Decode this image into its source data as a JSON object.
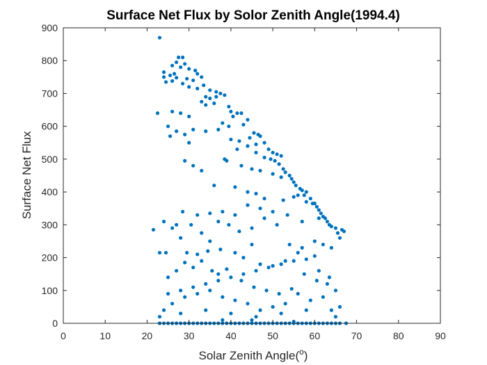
{
  "chart_data": {
    "type": "scatter",
    "title": "Surface Net Flux by Solor Zenith Angle(1994.4)",
    "xlabel": "Solar Zenith Angle(",
    "xlabel_superscript": "o",
    "xlabel_suffix": ")",
    "ylabel": "Surface Net Flux",
    "xlim": [
      0,
      90
    ],
    "ylim": [
      0,
      900
    ],
    "xticks": [
      0,
      10,
      20,
      30,
      40,
      50,
      60,
      70,
      80,
      90
    ],
    "yticks": [
      0,
      100,
      200,
      300,
      400,
      500,
      600,
      700,
      800,
      900
    ],
    "grid": false,
    "marker_color": "#0072BD",
    "series": [
      {
        "points": [
          [
            23,
            870
          ],
          [
            27.5,
            810
          ],
          [
            28.5,
            810
          ],
          [
            27,
            795
          ],
          [
            29,
            790
          ],
          [
            26,
            785
          ],
          [
            28,
            780
          ],
          [
            30,
            775
          ],
          [
            31.5,
            770
          ],
          [
            24,
            765
          ],
          [
            26.5,
            760
          ],
          [
            32,
            760
          ],
          [
            33,
            750
          ],
          [
            24,
            750
          ],
          [
            25.5,
            755
          ],
          [
            27,
            748
          ],
          [
            29.5,
            745
          ],
          [
            31,
            740
          ],
          [
            24.5,
            735
          ],
          [
            26,
            738
          ],
          [
            28.5,
            730
          ],
          [
            33.5,
            725
          ],
          [
            30,
            720
          ],
          [
            32,
            715
          ],
          [
            35,
            710
          ],
          [
            36.5,
            705
          ],
          [
            37.5,
            700
          ],
          [
            34,
            690
          ],
          [
            35,
            685
          ],
          [
            36.5,
            690
          ],
          [
            38.5,
            695
          ],
          [
            33,
            675
          ],
          [
            34,
            665
          ],
          [
            36,
            670
          ],
          [
            39.5,
            660
          ],
          [
            40,
            645
          ],
          [
            41.5,
            640
          ],
          [
            42.5,
            640
          ],
          [
            40.5,
            630
          ],
          [
            44,
            620
          ],
          [
            38,
            610
          ],
          [
            39.5,
            600
          ],
          [
            43,
            605
          ],
          [
            45.5,
            580
          ],
          [
            46.5,
            575
          ],
          [
            47,
            570
          ],
          [
            44.5,
            565
          ],
          [
            48,
            550
          ],
          [
            46,
            545
          ],
          [
            49,
            530
          ],
          [
            50,
            520
          ],
          [
            51,
            515
          ],
          [
            52,
            510
          ],
          [
            49.5,
            500
          ],
          [
            50.5,
            495
          ],
          [
            51.5,
            485
          ],
          [
            52.5,
            470
          ],
          [
            53,
            460
          ],
          [
            54,
            450
          ],
          [
            54.5,
            440
          ],
          [
            55,
            430
          ],
          [
            55.5,
            420
          ],
          [
            56.5,
            410
          ],
          [
            57,
            405
          ],
          [
            58,
            400
          ],
          [
            57.5,
            390
          ],
          [
            59,
            380
          ],
          [
            60,
            365
          ],
          [
            60.5,
            355
          ],
          [
            61,
            345
          ],
          [
            61.5,
            335
          ],
          [
            62,
            325
          ],
          [
            62.5,
            320
          ],
          [
            63,
            310
          ],
          [
            63.5,
            300
          ],
          [
            64,
            295
          ],
          [
            65,
            290
          ],
          [
            66.5,
            285
          ],
          [
            67,
            280
          ],
          [
            65.5,
            275
          ],
          [
            22.5,
            640
          ],
          [
            26,
            645
          ],
          [
            28,
            640
          ],
          [
            30,
            630
          ],
          [
            25,
            600
          ],
          [
            27,
            585
          ],
          [
            25.5,
            570
          ],
          [
            29,
            575
          ],
          [
            31,
            590
          ],
          [
            34,
            585
          ],
          [
            37,
            590
          ],
          [
            40,
            560
          ],
          [
            42,
            555
          ],
          [
            44,
            540
          ],
          [
            41.5,
            530
          ],
          [
            46,
            520
          ],
          [
            48,
            505
          ],
          [
            30,
            550
          ],
          [
            29,
            495
          ],
          [
            31,
            480
          ],
          [
            33,
            465
          ],
          [
            38.5,
            500
          ],
          [
            39,
            495
          ],
          [
            42.5,
            480
          ],
          [
            45,
            470
          ],
          [
            47,
            465
          ],
          [
            50,
            455
          ],
          [
            52,
            445
          ],
          [
            36,
            420
          ],
          [
            41,
            415
          ],
          [
            44,
            400
          ],
          [
            46,
            395
          ],
          [
            48,
            380
          ],
          [
            52.5,
            375
          ],
          [
            55,
            385
          ],
          [
            56,
            390
          ],
          [
            58,
            370
          ],
          [
            59.5,
            365
          ],
          [
            61,
            320
          ],
          [
            57,
            310
          ],
          [
            53.5,
            330
          ],
          [
            50,
            340
          ],
          [
            47,
            350
          ],
          [
            44,
            360
          ],
          [
            41,
            330
          ],
          [
            38,
            340
          ],
          [
            35,
            335
          ],
          [
            32,
            330
          ],
          [
            30.5,
            300
          ],
          [
            28.5,
            340
          ],
          [
            27,
            300
          ],
          [
            24,
            310
          ],
          [
            21.5,
            285
          ],
          [
            26,
            290
          ],
          [
            28,
            260
          ],
          [
            33,
            275
          ],
          [
            35,
            250
          ],
          [
            37,
            310
          ],
          [
            39.5,
            300
          ],
          [
            42,
            280
          ],
          [
            45,
            290
          ],
          [
            48,
            320
          ],
          [
            51,
            300
          ],
          [
            54,
            240
          ],
          [
            57,
            230
          ],
          [
            60,
            250
          ],
          [
            62,
            240
          ],
          [
            64,
            230
          ],
          [
            66,
            260
          ],
          [
            60,
            205
          ],
          [
            58,
            195
          ],
          [
            55,
            190
          ],
          [
            52,
            180
          ],
          [
            49,
            170
          ],
          [
            46,
            160
          ],
          [
            43,
            150
          ],
          [
            40,
            140
          ],
          [
            37,
            130
          ],
          [
            34,
            120
          ],
          [
            31,
            110
          ],
          [
            28,
            100
          ],
          [
            25,
            90
          ],
          [
            23,
            215
          ],
          [
            24.5,
            215
          ],
          [
            29.5,
            215
          ],
          [
            32,
            210
          ],
          [
            34.5,
            220
          ],
          [
            37.5,
            225
          ],
          [
            41,
            215
          ],
          [
            43,
            200
          ],
          [
            45,
            240
          ],
          [
            47,
            180
          ],
          [
            50,
            175
          ],
          [
            53,
            190
          ],
          [
            56,
            215
          ],
          [
            61,
            160
          ],
          [
            63,
            120
          ],
          [
            65,
            100
          ],
          [
            62,
            80
          ],
          [
            59,
            70
          ],
          [
            56,
            90
          ],
          [
            53,
            60
          ],
          [
            50,
            50
          ],
          [
            47,
            40
          ],
          [
            44,
            60
          ],
          [
            41,
            70
          ],
          [
            38,
            80
          ],
          [
            35,
            100
          ],
          [
            32,
            90
          ],
          [
            29,
            80
          ],
          [
            26,
            60
          ],
          [
            24,
            40
          ],
          [
            23,
            20
          ],
          [
            25,
            140
          ],
          [
            27,
            160
          ],
          [
            29,
            185
          ],
          [
            31,
            170
          ],
          [
            33,
            190
          ],
          [
            35.5,
            160
          ],
          [
            37,
            150
          ],
          [
            39,
            165
          ],
          [
            42.5,
            130
          ],
          [
            45.5,
            110
          ],
          [
            48.5,
            100
          ],
          [
            51.5,
            90
          ],
          [
            54.5,
            105
          ],
          [
            57.5,
            150
          ],
          [
            60.5,
            130
          ],
          [
            63.5,
            140
          ],
          [
            66,
            50
          ],
          [
            64,
            40
          ],
          [
            58,
            40
          ],
          [
            52,
            30
          ],
          [
            46,
            20
          ],
          [
            40,
            30
          ],
          [
            34,
            40
          ],
          [
            28,
            30
          ],
          [
            38,
            10
          ],
          [
            45,
            10
          ],
          [
            55,
            5
          ],
          [
            65,
            20
          ],
          [
            23,
            0
          ],
          [
            24,
            0
          ],
          [
            25,
            0
          ],
          [
            26,
            0
          ],
          [
            27,
            0
          ],
          [
            28,
            0
          ],
          [
            29,
            0
          ],
          [
            30,
            0
          ],
          [
            31,
            0
          ],
          [
            32,
            0
          ],
          [
            33,
            0
          ],
          [
            34,
            0
          ],
          [
            35,
            0
          ],
          [
            36,
            0
          ],
          [
            37,
            0
          ],
          [
            38,
            0
          ],
          [
            39,
            0
          ],
          [
            40,
            0
          ],
          [
            41,
            0
          ],
          [
            42,
            0
          ],
          [
            43,
            0
          ],
          [
            44,
            0
          ],
          [
            45,
            0
          ],
          [
            46,
            0
          ],
          [
            47,
            0
          ],
          [
            48,
            0
          ],
          [
            49,
            0
          ],
          [
            50,
            0
          ],
          [
            51,
            0
          ],
          [
            52,
            0
          ],
          [
            53,
            0
          ],
          [
            54,
            0
          ],
          [
            55,
            0
          ],
          [
            56,
            0
          ],
          [
            57,
            0
          ],
          [
            58,
            0
          ],
          [
            59,
            0
          ],
          [
            60,
            0
          ],
          [
            61,
            0
          ],
          [
            62,
            0
          ],
          [
            63,
            0
          ],
          [
            64,
            0
          ],
          [
            65,
            0
          ],
          [
            66,
            0
          ],
          [
            67.5,
            0
          ]
        ]
      }
    ]
  }
}
